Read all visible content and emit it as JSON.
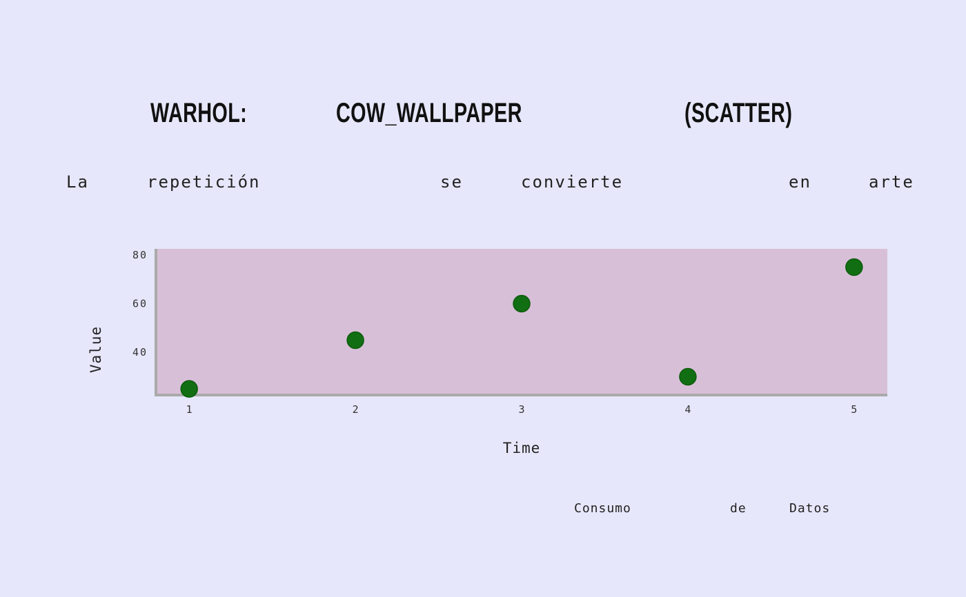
{
  "title": {
    "words": [
      "WARHOL:",
      "COW_WALLPAPER",
      "(SCATTER)"
    ]
  },
  "subtitle": {
    "words": [
      "La",
      "repetición",
      "se",
      "convierte",
      "en",
      "arte"
    ]
  },
  "footer": {
    "words": [
      "Consumo",
      "de",
      "Datos"
    ]
  },
  "colors": {
    "background": "#e6e7fa",
    "plot_area": "#d8bfd8",
    "point": "#126e12",
    "point_stroke": "#0b5c0b",
    "axis": "#aaaaaa"
  },
  "chart_data": {
    "type": "scatter",
    "title": "WARHOL: COW_WALLPAPER (SCATTER)",
    "subtitle": "La repetición se convierte en arte",
    "xlabel": "Time",
    "ylabel": "Value",
    "x": [
      1,
      2,
      3,
      4,
      5
    ],
    "y": [
      25,
      45,
      60,
      30,
      75
    ],
    "xticks": [
      1,
      2,
      3,
      4,
      5
    ],
    "yticks": [
      40,
      60,
      80
    ],
    "xlim": [
      0.8,
      5.2
    ],
    "ylim": [
      22.5,
      82.5
    ],
    "grid": false,
    "legend": "none"
  }
}
